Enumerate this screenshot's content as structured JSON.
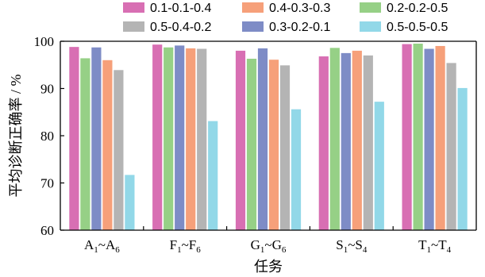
{
  "chart_data": {
    "type": "bar",
    "categories": [
      {
        "main": "A",
        "sub1": "1",
        "sep": "~",
        "main2": "A",
        "sub2": "6"
      },
      {
        "main": "F",
        "sub1": "1",
        "sep": "~",
        "main2": "F",
        "sub2": "6"
      },
      {
        "main": "G",
        "sub1": "1",
        "sep": "~",
        "main2": "G",
        "sub2": "6"
      },
      {
        "main": "S",
        "sub1": "1",
        "sep": "~",
        "main2": "S",
        "sub2": "4"
      },
      {
        "main": "T",
        "sub1": "1",
        "sep": "~",
        "main2": "T",
        "sub2": "4"
      }
    ],
    "series": [
      {
        "name": "0.1-0.1-0.4",
        "color": "#d86fb3",
        "values": [
          98.8,
          99.3,
          98.0,
          96.8,
          99.4
        ]
      },
      {
        "name": "0.4-0.3-0.3",
        "color": "#f6a07a",
        "values": [
          96.0,
          98.5,
          96.1,
          98.0,
          99.0
        ]
      },
      {
        "name": "0.2-0.2-0.5",
        "color": "#96d086",
        "values": [
          96.4,
          98.7,
          96.3,
          98.6,
          99.5
        ]
      },
      {
        "name": "0.5-0.4-0.2",
        "color": "#b4b4b4",
        "values": [
          93.9,
          98.4,
          94.9,
          97.0,
          95.4
        ]
      },
      {
        "name": "0.3-0.2-0.1",
        "color": "#7e8cc6",
        "values": [
          98.7,
          99.1,
          98.5,
          97.5,
          98.4
        ]
      },
      {
        "name": "0.5-0.5-0.5",
        "color": "#92d8e8",
        "values": [
          71.7,
          83.1,
          85.6,
          87.2,
          90.1
        ]
      }
    ],
    "bar_order": [
      0,
      2,
      4,
      1,
      3,
      5
    ],
    "ylabel": "平均诊断正确率 / %",
    "xlabel": "任务",
    "ylim": [
      60,
      100
    ],
    "yticks": [
      60,
      70,
      80,
      90,
      100
    ],
    "legend_placement": "top",
    "grid": false
  }
}
